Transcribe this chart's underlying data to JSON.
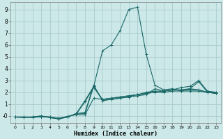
{
  "title": "",
  "xlabel": "Humidex (Indice chaleur)",
  "bg_color": "#cce8e8",
  "grid_color": "#aacccc",
  "line_color": "#1a6868",
  "xlim": [
    -0.5,
    23.5
  ],
  "ylim": [
    -0.6,
    9.6
  ],
  "xticks": [
    0,
    1,
    2,
    3,
    4,
    5,
    6,
    7,
    8,
    9,
    10,
    11,
    12,
    13,
    14,
    15,
    16,
    17,
    18,
    19,
    20,
    21,
    22,
    23
  ],
  "yticks": [
    0,
    1,
    2,
    3,
    4,
    5,
    6,
    7,
    8,
    9
  ],
  "ytick_labels": [
    "-0",
    "1",
    "2",
    "3",
    "4",
    "5",
    "6",
    "7",
    "8",
    "9"
  ],
  "lines": [
    {
      "x": [
        0,
        1,
        2,
        3,
        4,
        5,
        6,
        7,
        8,
        9,
        10,
        11,
        12,
        13,
        14,
        15,
        16,
        17,
        18,
        19,
        20,
        21,
        22,
        23
      ],
      "y": [
        -0.1,
        -0.15,
        -0.1,
        -0.05,
        -0.1,
        -0.2,
        -0.05,
        0.1,
        0.1,
        1.5,
        1.4,
        1.5,
        1.6,
        1.7,
        1.8,
        1.9,
        2.0,
        2.0,
        2.1,
        2.1,
        2.1,
        2.1,
        2.0,
        2.0
      ]
    },
    {
      "x": [
        0,
        1,
        2,
        3,
        4,
        5,
        6,
        7,
        8,
        9,
        10,
        11,
        12,
        13,
        14,
        15,
        16,
        17,
        18,
        19,
        20,
        21,
        22,
        23
      ],
      "y": [
        -0.1,
        -0.1,
        -0.1,
        -0.05,
        -0.1,
        -0.2,
        -0.05,
        0.15,
        0.2,
        2.5,
        1.3,
        1.4,
        1.5,
        1.6,
        1.8,
        1.9,
        2.0,
        2.1,
        2.2,
        2.2,
        2.2,
        2.2,
        2.0,
        1.9
      ]
    },
    {
      "x": [
        0,
        1,
        2,
        3,
        4,
        5,
        6,
        7,
        8,
        9,
        10,
        11,
        12,
        13,
        14,
        15,
        16,
        17,
        18,
        19,
        20,
        21,
        22,
        23
      ],
      "y": [
        -0.1,
        -0.1,
        -0.15,
        -0.05,
        -0.1,
        -0.25,
        -0.05,
        0.15,
        1.2,
        2.4,
        1.4,
        1.5,
        1.6,
        1.7,
        1.8,
        2.0,
        2.1,
        2.1,
        2.2,
        2.2,
        2.3,
        2.2,
        2.0,
        1.9
      ]
    },
    {
      "x": [
        0,
        1,
        2,
        3,
        4,
        5,
        6,
        7,
        8,
        9,
        10,
        11,
        12,
        13,
        14,
        15,
        16,
        17,
        18,
        19,
        20,
        21,
        22,
        23
      ],
      "y": [
        -0.1,
        -0.1,
        -0.1,
        0.0,
        -0.15,
        -0.25,
        -0.1,
        0.2,
        0.3,
        2.6,
        1.3,
        1.4,
        1.5,
        1.6,
        1.7,
        1.8,
        2.3,
        2.1,
        2.2,
        2.4,
        2.5,
        3.0,
        2.1,
        2.0
      ]
    },
    {
      "x": [
        0,
        1,
        2,
        3,
        4,
        5,
        6,
        7,
        8,
        9,
        10,
        11,
        12,
        13,
        14,
        15,
        16,
        17,
        18,
        19,
        20,
        21,
        22,
        23
      ],
      "y": [
        -0.1,
        -0.1,
        -0.1,
        0.0,
        -0.15,
        -0.25,
        -0.1,
        0.2,
        1.3,
        2.5,
        5.5,
        6.0,
        7.2,
        9.0,
        9.2,
        5.2,
        2.6,
        2.2,
        2.3,
        2.1,
        2.3,
        2.9,
        2.0,
        1.9
      ]
    }
  ]
}
